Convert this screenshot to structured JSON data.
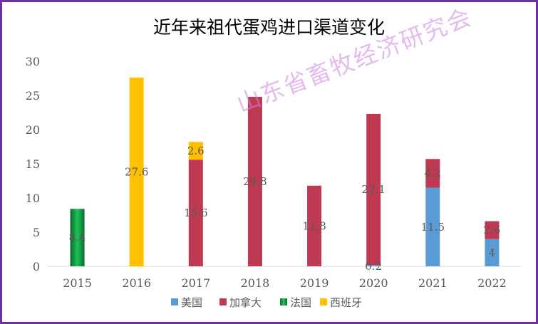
{
  "chart_data": {
    "type": "bar",
    "stacked": true,
    "title": "近年来祖代蛋鸡进口渠道变化",
    "categories": [
      "2015",
      "2016",
      "2017",
      "2018",
      "2019",
      "2020",
      "2021",
      "2022"
    ],
    "ylim": [
      0,
      30
    ],
    "yticks": [
      "0",
      "5",
      "10",
      "15",
      "20",
      "25",
      "30"
    ],
    "grid": false,
    "legend_position": "bottom",
    "series": [
      {
        "name": "美国",
        "color": "#5b9bd5",
        "values": [
          null,
          null,
          null,
          null,
          null,
          0.2,
          11.5,
          4
        ]
      },
      {
        "name": "加拿大",
        "color": "#be3a52",
        "values": [
          null,
          null,
          15.6,
          24.8,
          11.8,
          22.1,
          4.2,
          2.6
        ]
      },
      {
        "name": "法国",
        "color": "#1aa84a",
        "values": [
          8.4,
          null,
          null,
          null,
          null,
          null,
          null,
          null
        ]
      },
      {
        "name": "西班牙",
        "color": "#ffc000",
        "values": [
          null,
          27.6,
          2.6,
          null,
          null,
          null,
          null,
          null
        ]
      }
    ],
    "data_labels": [
      [
        "",
        "",
        "",
        "",
        "",
        "0.2",
        "11.5",
        "4"
      ],
      [
        "",
        "",
        "15.6",
        "24.8",
        "11.8",
        "22.1",
        "4.2",
        "2.6"
      ],
      [
        "8.4",
        "",
        "",
        "",
        "",
        "",
        "",
        ""
      ],
      [
        "",
        "27.6",
        "2.6",
        "",
        "",
        "",
        "",
        ""
      ]
    ]
  },
  "watermark": "山东省畜牧经济研究会"
}
